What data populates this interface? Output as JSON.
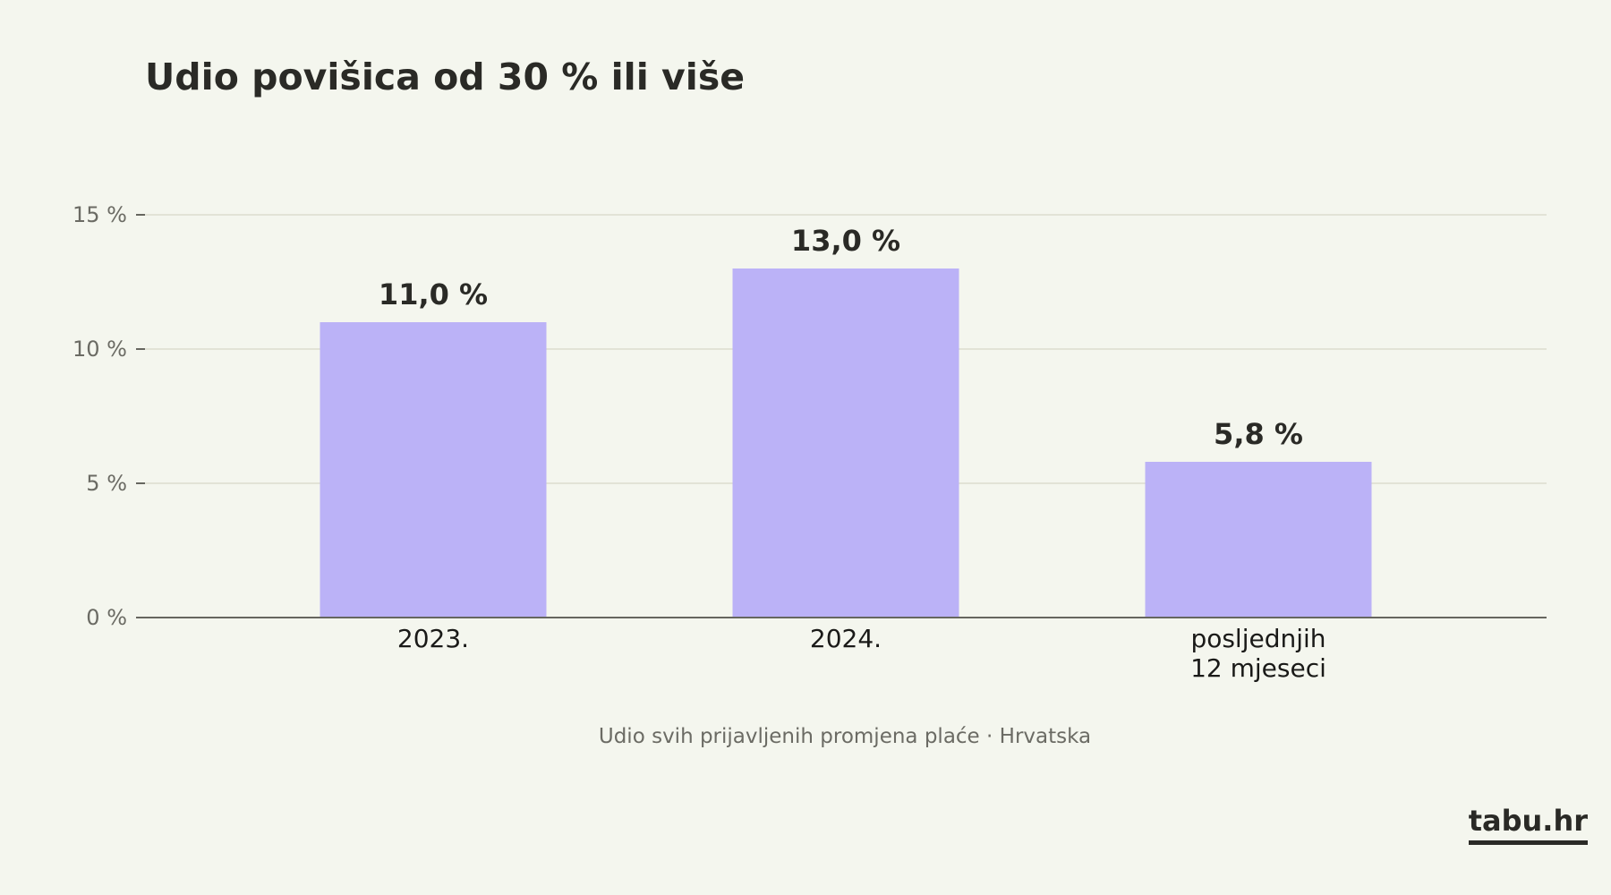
{
  "chart_data": {
    "type": "bar",
    "title": "Udio povišica od 30 % ili više",
    "subtitle": "Udio svih prijavljenih promjena plaće  ·  Hrvatska",
    "categories": [
      [
        "2023."
      ],
      [
        "2024."
      ],
      [
        "posljednjih",
        "12 mjeseci"
      ]
    ],
    "values": [
      11.0,
      13.0,
      5.8
    ],
    "value_labels": [
      "11,0 %",
      "13,0 %",
      "5,8 %"
    ],
    "ylim": [
      0,
      15
    ],
    "yticks": [
      0,
      5,
      10,
      15
    ],
    "ytick_labels": [
      "0 %",
      "5 %",
      "10 %",
      "15 %"
    ],
    "grid": true,
    "bar_color": "#bbb2f7",
    "grid_color": "#e2e3d6",
    "axis_color": "#66665f"
  },
  "brand": "tabu.hr"
}
